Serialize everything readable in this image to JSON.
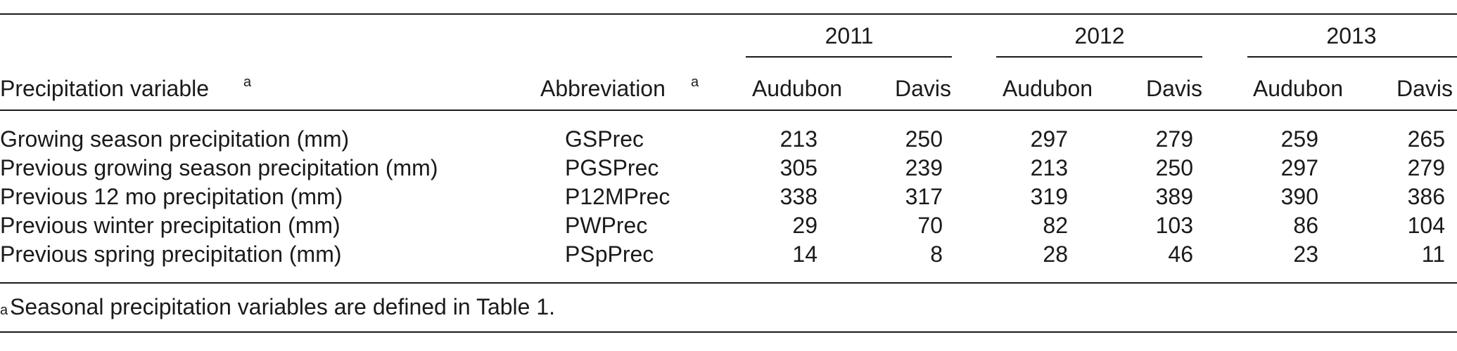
{
  "table": {
    "header": {
      "variable": "Precipitation variable",
      "variable_note": "a",
      "abbreviation": "Abbreviation",
      "abbreviation_note": "a",
      "years": [
        "2011",
        "2012",
        "2013"
      ],
      "sites": [
        "Audubon",
        "Davis",
        "Audubon",
        "Davis",
        "Audubon",
        "Davis"
      ]
    },
    "rows": [
      [
        "Growing season precipitation (mm)",
        "GSPrec",
        213,
        250,
        297,
        279,
        259,
        265
      ],
      [
        "Previous growing season precipitation (mm)",
        "PGSPrec",
        305,
        239,
        213,
        250,
        297,
        279
      ],
      [
        "Previous 12 mo precipitation (mm)",
        "P12MPrec",
        338,
        317,
        319,
        389,
        390,
        386
      ],
      [
        "Previous winter precipitation (mm)",
        "PWPrec",
        29,
        70,
        82,
        103,
        86,
        104
      ],
      [
        "Previous spring precipitation (mm)",
        "PSpPrec",
        14,
        8,
        28,
        46,
        23,
        11
      ]
    ],
    "footnote": {
      "marker": "a",
      "text": "Seasonal precipitation variables are defined in Table 1."
    }
  }
}
